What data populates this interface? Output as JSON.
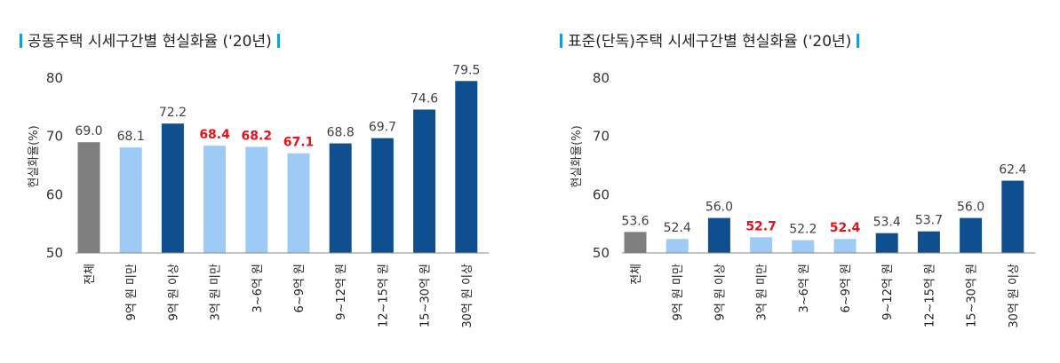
{
  "chart_data": [
    {
      "type": "bar",
      "title": "공동주택 시세구간별 현실화율 ('20년)",
      "ylabel": "현실화율(%)",
      "ylim": [
        50,
        80
      ],
      "yticks": [
        50,
        60,
        70,
        80
      ],
      "categories": [
        "전체",
        "9억 원 미만",
        "9억 원 이상",
        "3억 원 미만",
        "3~6억 원",
        "6~9억 원",
        "9~12억 원",
        "12~15억 원",
        "15~30억 원",
        "30억 원 이상"
      ],
      "values": [
        69.0,
        68.1,
        72.2,
        68.4,
        68.2,
        67.1,
        68.8,
        69.7,
        74.6,
        79.5
      ],
      "value_labels": [
        "69.0",
        "68.1",
        "72.2",
        "68.4",
        "68.2",
        "67.1",
        "68.8",
        "69.7",
        "74.6",
        "79.5"
      ],
      "bar_colors": [
        "#7f7f7f",
        "#9dcbf5",
        "#0f4f8f",
        "#9dcbf5",
        "#9dcbf5",
        "#9dcbf5",
        "#0f4f8f",
        "#0f4f8f",
        "#0f4f8f",
        "#0f4f8f"
      ],
      "highlight": [
        false,
        false,
        false,
        true,
        true,
        true,
        false,
        false,
        false,
        false
      ],
      "grid": false
    },
    {
      "type": "bar",
      "title": "표준(단독)주택 시세구간별 현실화율 ('20년)",
      "ylabel": "현실화율(%)",
      "ylim": [
        50,
        80
      ],
      "yticks": [
        50,
        60,
        70,
        80
      ],
      "categories": [
        "전체",
        "9억 원 미만",
        "9억 원 이상",
        "3억 원 미만",
        "3~6억 원",
        "6~9억 원",
        "9~12억 원",
        "12~15억 원",
        "15~30억 원",
        "30억 원 이상"
      ],
      "values": [
        53.6,
        52.4,
        56.0,
        52.7,
        52.2,
        52.4,
        53.4,
        53.7,
        56.0,
        62.4
      ],
      "value_labels": [
        "53.6",
        "52.4",
        "56.0",
        "52.7",
        "52.2",
        "52.4",
        "53.4",
        "53.7",
        "56.0",
        "62.4"
      ],
      "bar_colors": [
        "#7f7f7f",
        "#9dcbf5",
        "#0f4f8f",
        "#9dcbf5",
        "#9dcbf5",
        "#9dcbf5",
        "#0f4f8f",
        "#0f4f8f",
        "#0f4f8f",
        "#0f4f8f"
      ],
      "highlight": [
        false,
        false,
        false,
        true,
        false,
        true,
        false,
        false,
        false,
        false
      ],
      "grid": false
    }
  ],
  "colors": {
    "title_accent": "#1e9bd7",
    "highlight_text": "#e8101a",
    "label_text": "#404040",
    "axis": "#888888"
  }
}
